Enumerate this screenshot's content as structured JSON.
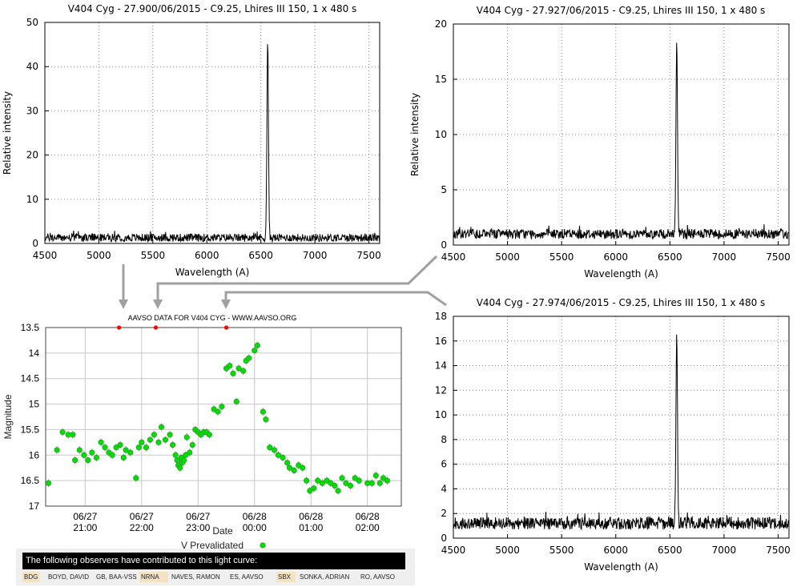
{
  "colors": {
    "spectrum": "#000000",
    "grid": "#8c8c8c",
    "aavso_points": "#00e000",
    "aavso_marker": "#ff0000",
    "arrow": "#a0a0a0"
  },
  "chart_data": [
    {
      "type": "line",
      "title": "V404 Cyg - 27.900/06/2015 - C9.25, Lhires III 150, 1 x 480 s",
      "xlabel": "Wavelength (A)",
      "ylabel": "Relative intensity",
      "xlim": [
        4500,
        7600
      ],
      "ylim": [
        0,
        50
      ],
      "xticks": [
        "4500",
        "5000",
        "5500",
        "6000",
        "6500",
        "7000",
        "7500"
      ],
      "yticks": [
        "0",
        "10",
        "20",
        "30",
        "40",
        "50"
      ],
      "grid": true,
      "series": [
        {
          "continuum": 1.3,
          "noise": 0.9,
          "peak_x": 6563,
          "peak_y": 46
        }
      ]
    },
    {
      "type": "line",
      "title": "V404 Cyg - 27.927/06/2015 - C9.25, Lhires III 150, 1 x 480 s",
      "xlabel": "Wavelength (A)",
      "ylabel": "Relative intensity",
      "xlim": [
        4500,
        7600
      ],
      "ylim": [
        0,
        20
      ],
      "xticks": [
        "4500",
        "5000",
        "5500",
        "6000",
        "6500",
        "7000",
        "7500"
      ],
      "yticks": [
        "0",
        "5",
        "10",
        "15",
        "20"
      ],
      "grid": true,
      "series": [
        {
          "continuum": 1.0,
          "noise": 0.45,
          "peak_x": 6563,
          "peak_y": 18.8
        }
      ]
    },
    {
      "type": "line",
      "title": "V404 Cyg - 27.974/06/2015 - C9.25, Lhires III 150, 1 x 480 s",
      "xlabel": "Wavelength (A)",
      "ylabel": "",
      "xlim": [
        4500,
        7600
      ],
      "ylim": [
        0,
        18
      ],
      "xticks": [
        "4500",
        "5000",
        "5500",
        "6000",
        "6500",
        "7000",
        "7500"
      ],
      "yticks": [
        "0",
        "2",
        "4",
        "6",
        "8",
        "10",
        "12",
        "14",
        "16",
        "18"
      ],
      "grid": true,
      "series": [
        {
          "continuum": 1.2,
          "noise": 0.5,
          "peak_x": 6563,
          "peak_y": 16.5
        }
      ]
    },
    {
      "type": "scatter",
      "title": "AAVSO DATA FOR V404 CYG - WWW.AAVSO.ORG",
      "xlabel": "Date",
      "ylabel": "Magnitude",
      "ylim": [
        13.5,
        17
      ],
      "yticks": [
        "13.5",
        "14",
        "14.5",
        "15",
        "15.5",
        "16",
        "16.5",
        "17"
      ],
      "xticks": [
        {
          "date": "06/27",
          "time": "21:00"
        },
        {
          "date": "06/27",
          "time": "22:00"
        },
        {
          "date": "06/27",
          "time": "23:00"
        },
        {
          "date": "06/28",
          "time": "00:00"
        },
        {
          "date": "06/28",
          "time": "01:00"
        },
        {
          "date": "06/28",
          "time": "02:00"
        }
      ],
      "xlim_hours": [
        20.3,
        26.6
      ],
      "legend": "V Prevalidated",
      "legend_position": "bottom",
      "spectrum_markers_hours": [
        21.6,
        22.25,
        23.5
      ],
      "points": [
        [
          20.35,
          16.55
        ],
        [
          20.5,
          15.9
        ],
        [
          20.6,
          15.55
        ],
        [
          20.7,
          15.6
        ],
        [
          20.78,
          15.6
        ],
        [
          20.82,
          16.1
        ],
        [
          20.9,
          15.9
        ],
        [
          20.98,
          16.0
        ],
        [
          21.05,
          16.1
        ],
        [
          21.12,
          15.95
        ],
        [
          21.2,
          16.05
        ],
        [
          21.28,
          15.75
        ],
        [
          21.35,
          15.85
        ],
        [
          21.42,
          15.95
        ],
        [
          21.48,
          16.0
        ],
        [
          21.55,
          15.85
        ],
        [
          21.62,
          15.8
        ],
        [
          21.68,
          16.05
        ],
        [
          21.72,
          15.9
        ],
        [
          21.8,
          15.95
        ],
        [
          21.9,
          16.45
        ],
        [
          21.95,
          15.85
        ],
        [
          22.0,
          15.75
        ],
        [
          22.08,
          15.85
        ],
        [
          22.15,
          15.7
        ],
        [
          22.22,
          15.6
        ],
        [
          22.3,
          15.75
        ],
        [
          22.35,
          15.45
        ],
        [
          22.42,
          15.7
        ],
        [
          22.5,
          15.6
        ],
        [
          22.55,
          15.8
        ],
        [
          22.6,
          16.0
        ],
        [
          22.63,
          16.1
        ],
        [
          22.65,
          16.2
        ],
        [
          22.68,
          16.25
        ],
        [
          22.7,
          16.05
        ],
        [
          22.72,
          16.15
        ],
        [
          22.75,
          16.1
        ],
        [
          22.78,
          16.0
        ],
        [
          22.8,
          15.65
        ],
        [
          22.85,
          15.95
        ],
        [
          22.9,
          15.8
        ],
        [
          22.95,
          15.5
        ],
        [
          23.0,
          15.55
        ],
        [
          23.05,
          15.6
        ],
        [
          23.1,
          15.55
        ],
        [
          23.15,
          15.55
        ],
        [
          23.2,
          15.6
        ],
        [
          23.28,
          15.1
        ],
        [
          23.35,
          15.15
        ],
        [
          23.42,
          15.05
        ],
        [
          23.5,
          14.3
        ],
        [
          23.56,
          14.25
        ],
        [
          23.62,
          14.4
        ],
        [
          23.68,
          14.95
        ],
        [
          23.72,
          14.3
        ],
        [
          23.8,
          14.35
        ],
        [
          23.85,
          14.15
        ],
        [
          23.9,
          14.1
        ],
        [
          24.0,
          13.95
        ],
        [
          24.05,
          13.85
        ],
        [
          24.15,
          15.15
        ],
        [
          24.2,
          15.3
        ],
        [
          24.27,
          15.85
        ],
        [
          24.35,
          15.9
        ],
        [
          24.42,
          16.0
        ],
        [
          24.5,
          16.05
        ],
        [
          24.58,
          16.15
        ],
        [
          24.62,
          16.25
        ],
        [
          24.7,
          16.3
        ],
        [
          24.78,
          16.2
        ],
        [
          24.85,
          16.25
        ],
        [
          24.92,
          16.5
        ],
        [
          24.98,
          16.7
        ],
        [
          25.05,
          16.65
        ],
        [
          25.12,
          16.5
        ],
        [
          25.2,
          16.55
        ],
        [
          25.28,
          16.5
        ],
        [
          25.35,
          16.55
        ],
        [
          25.42,
          16.6
        ],
        [
          25.48,
          16.7
        ],
        [
          25.55,
          16.45
        ],
        [
          25.62,
          16.55
        ],
        [
          25.7,
          16.6
        ],
        [
          25.78,
          16.45
        ],
        [
          25.85,
          16.5
        ],
        [
          26.0,
          16.55
        ],
        [
          26.08,
          16.55
        ],
        [
          26.15,
          16.4
        ],
        [
          26.22,
          16.55
        ],
        [
          26.28,
          16.45
        ],
        [
          26.35,
          16.5
        ]
      ]
    }
  ],
  "observers": {
    "header": "The following observers have contributed to this light curve:",
    "items": [
      {
        "code": "BDG",
        "name": "BOYD, DAVID",
        "highlight": true
      },
      {
        "code": "",
        "name": "GB, BAA-VSS",
        "highlight": false
      },
      {
        "code": "NRNA",
        "name": "NAVES, RAMON",
        "highlight": true
      },
      {
        "code": "",
        "name": "ES, AAVSO",
        "highlight": false
      },
      {
        "code": "SBX",
        "name": "SONKA, ADRIAN",
        "highlight": true
      },
      {
        "code": "",
        "name": "RO, AAVSO",
        "highlight": false
      }
    ]
  }
}
